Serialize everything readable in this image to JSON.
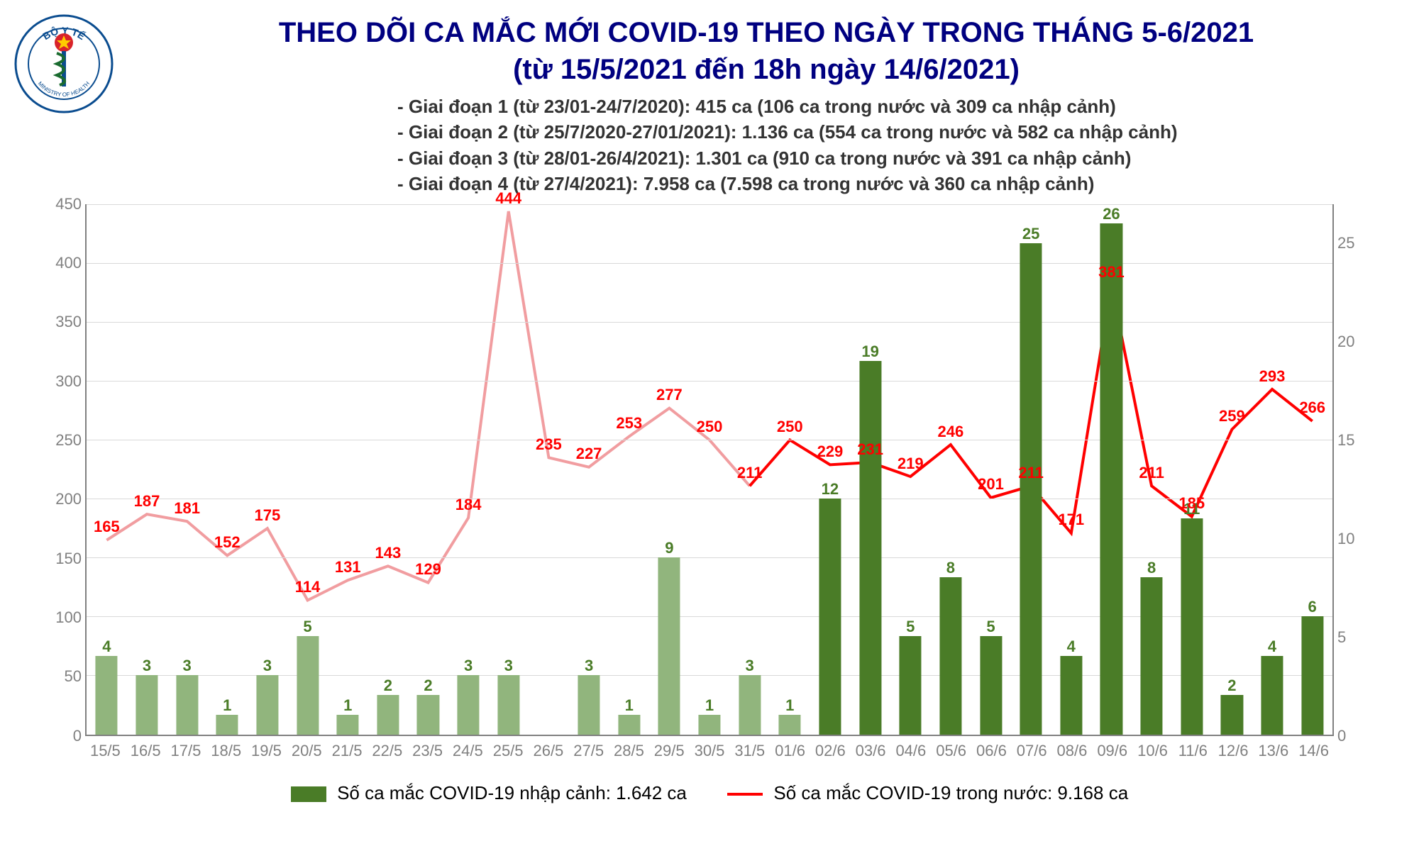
{
  "title_line1": "THEO DÕI CA MẮC MỚI COVID-19 THEO NGÀY TRONG THÁNG 5-6/2021",
  "title_line2": "(từ 15/5/2021 đến 18h ngày 14/6/2021)",
  "title_color": "#000080",
  "notes": [
    "- Giai đoạn 1 (từ 23/01-24/7/2020): 415 ca (106 ca trong nước và 309 ca nhập cảnh)",
    "- Giai đoạn 2 (từ 25/7/2020-27/01/2021): 1.136 ca (554 ca trong nước và 582 ca nhập cảnh)",
    "- Giai đoạn 3 (từ 28/01-26/4/2021): 1.301 ca (910 ca trong nước và 391 ca nhập cảnh)",
    "- Giai đoạn 4 (từ 27/4/2021): 7.958 ca (7.598 ca trong nước và 360 ca nhập cảnh)"
  ],
  "chart": {
    "categories": [
      "15/5",
      "16/5",
      "17/5",
      "18/5",
      "19/5",
      "20/5",
      "21/5",
      "22/5",
      "23/5",
      "24/5",
      "25/5",
      "26/5",
      "27/5",
      "28/5",
      "29/5",
      "30/5",
      "31/5",
      "01/6",
      "02/6",
      "03/6",
      "04/6",
      "05/6",
      "06/6",
      "07/6",
      "08/6",
      "09/6",
      "10/6",
      "11/6",
      "12/6",
      "13/6",
      "14/6"
    ],
    "line_values": [
      165,
      187,
      181,
      152,
      175,
      114,
      131,
      143,
      129,
      184,
      444,
      235,
      227,
      253,
      277,
      250,
      211,
      250,
      229,
      231,
      219,
      246,
      201,
      211,
      171,
      381,
      211,
      185,
      259,
      293,
      266
    ],
    "bar_values": [
      4,
      3,
      3,
      1,
      3,
      5,
      1,
      2,
      2,
      3,
      3,
      0,
      3,
      1,
      9,
      1,
      3,
      1,
      12,
      19,
      5,
      8,
      5,
      25,
      4,
      26,
      8,
      11,
      2,
      4,
      6
    ],
    "line_color_faded": "#f19da0",
    "line_color_solid": "#ff0000",
    "line_split_index": 16,
    "bar_color_faded": "#91b57d",
    "bar_color_solid": "#4a7c27",
    "bar_split_index": 18,
    "bar_width_ratio": 0.55,
    "left_axis": {
      "min": 0,
      "max": 450,
      "step": 50,
      "color": "#808080",
      "fontsize": 22
    },
    "right_axis": {
      "min": 0,
      "max": 27,
      "step": 5,
      "color": "#808080",
      "fontsize": 22
    },
    "grid_color": "#d9d9d9",
    "background_color": "#ffffff",
    "label_color_line": "#ff0000",
    "label_color_bar": "#4a7c27",
    "label_fontsize": 22
  },
  "legend": {
    "bar_label": "Số ca mắc COVID-19 nhập cảnh: 1.642 ca",
    "line_label": "Số ca mắc COVID-19 trong nước: 9.168 ca",
    "bar_swatch_color": "#4a7c27",
    "line_swatch_color": "#ff0000",
    "text_color": "#333333",
    "fontsize": 26
  },
  "logo": {
    "outer_circle_text_top": "BỘ Y TẾ",
    "outer_circle_text_bottom": "MINISTRY OF HEALTH",
    "ring_color": "#0a4c8f",
    "star_color": "#ffcc00",
    "star_bg": "#d8232a",
    "snake_color": "#1a6b2f"
  }
}
